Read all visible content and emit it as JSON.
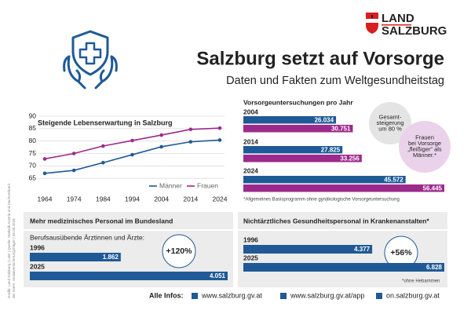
{
  "logo": {
    "line1": "LAND",
    "line2": "SALZBURG"
  },
  "header": {
    "title": "Salzburg setzt auf Vorsorge",
    "subtitle": "Daten und Fakten zum Weltgesundheitstag"
  },
  "source": [
    "Grafik: Land Salzburg | LMZ | Quelle: Statistik Austria und Dachverband",
    "der österr. Sozialversicherungsträger | 05.04.2025"
  ],
  "chart_data": [
    {
      "type": "line",
      "title": "Steigende Lebenserwartung in Salzburg",
      "x": [
        1964,
        1974,
        1984,
        1994,
        2004,
        2014,
        2024
      ],
      "series": [
        {
          "name": "Männer",
          "color": "#1f5a96",
          "values": [
            67,
            68.2,
            71.3,
            74.5,
            77.7,
            79.7,
            80.4
          ]
        },
        {
          "name": "Frauen",
          "color": "#9c2a8c",
          "values": [
            72.8,
            75,
            78,
            80.2,
            82.4,
            84.7,
            85.2
          ]
        }
      ],
      "xlim": [
        1964,
        2024
      ],
      "ylim": [
        60,
        90
      ],
      "yticks": [
        65,
        70,
        75,
        80,
        85,
        90
      ],
      "grid": true,
      "legend": "bottom-right"
    },
    {
      "type": "bar",
      "title": "Vorsorgeuntersuchungen pro Jahr",
      "categories": [
        "2004",
        "2014",
        "2024"
      ],
      "series": [
        {
          "color": "#1f5a96",
          "values": [
            26034,
            27825,
            45572
          ],
          "value_labels": [
            "26.034",
            "27.825",
            "45.572"
          ]
        },
        {
          "color": "#9c2a8c",
          "values": [
            30751,
            33256,
            56445
          ],
          "value_labels": [
            "30.751",
            "33.256",
            "56.445"
          ]
        }
      ],
      "annotations": [
        [
          "Gesamt-",
          "steigerung",
          "um 80 %"
        ],
        [
          "Frauen",
          "bei Vorsorge",
          "„fleißiger“ als",
          "Männer.*"
        ]
      ],
      "note": "*Allgemeines Basisprogramm ohne gynäkologische Vorsorgeuntersuchung"
    },
    {
      "type": "bar",
      "title": "Mehr medizinisches Personal im Bundesland",
      "subtitle": "Berufsausübende Ärztinnen und Ärzte:",
      "categories": [
        "1996",
        "2025"
      ],
      "values": [
        1862,
        4051
      ],
      "value_labels": [
        "1.862",
        "4.051"
      ],
      "color": "#1f5a96",
      "annotation": "+120%"
    },
    {
      "type": "bar",
      "title": "Nichtärztliches Gesundheitspersonal in Krankenanstalten*",
      "categories": [
        "1996",
        "2025"
      ],
      "values": [
        4377,
        6828
      ],
      "value_labels": [
        "4.377",
        "6.828"
      ],
      "color": "#1f5a96",
      "annotation": "+56%",
      "note": "*ohne Hebammen"
    }
  ],
  "footer": {
    "label": "Alle Infos:",
    "links": [
      "www.salzburg.gv.at",
      "www.salzburg.gv.at/app",
      "on.salzburg.gv.at"
    ]
  }
}
